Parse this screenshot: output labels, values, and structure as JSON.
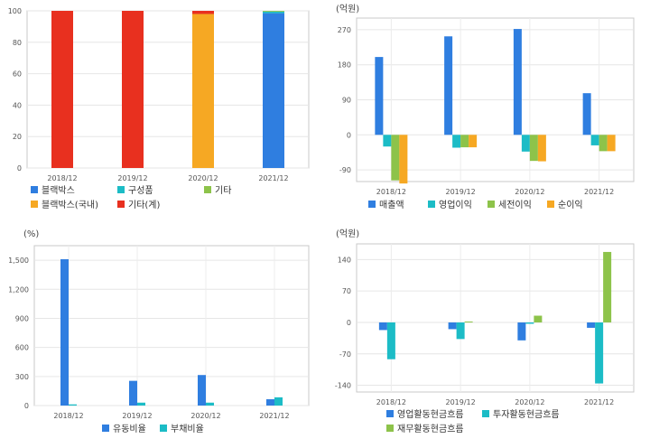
{
  "chart_data": [
    {
      "type": "bar",
      "stacked": true,
      "title": "",
      "unit": "",
      "categories": [
        "2018/12",
        "2019/12",
        "2020/12",
        "2021/12"
      ],
      "ylim": [
        0,
        100
      ],
      "yticks": [
        0,
        20,
        40,
        60,
        80,
        100
      ],
      "grid": true,
      "legend_position": "bottom",
      "series": [
        {
          "name": "블랙박스",
          "color": "#2f7ee0",
          "values": [
            0,
            0,
            0,
            98.5
          ]
        },
        {
          "name": "구성품",
          "color": "#1cbcc6",
          "values": [
            0,
            0,
            0,
            1
          ]
        },
        {
          "name": "기타",
          "color": "#8dc34a",
          "values": [
            0,
            0,
            0,
            0.5
          ]
        },
        {
          "name": "블랙박스(국내)",
          "color": "#f6a823",
          "values": [
            0,
            0,
            98,
            0
          ]
        },
        {
          "name": "기타(계)",
          "color": "#e8301f",
          "values": [
            100,
            100,
            2,
            0
          ]
        }
      ]
    },
    {
      "type": "bar",
      "title": "",
      "unit": "(억원)",
      "categories": [
        "2018/12",
        "2019/12",
        "2020/12",
        "2021/12"
      ],
      "ylim": [
        -120,
        300
      ],
      "yticks": [
        -90,
        0,
        90,
        180,
        270
      ],
      "grid": true,
      "legend_position": "bottom",
      "series": [
        {
          "name": "매출액",
          "color": "#2f7ee0",
          "values": [
            200,
            253,
            272,
            107
          ]
        },
        {
          "name": "영업이익",
          "color": "#1cbcc6",
          "values": [
            -30,
            -33,
            -43,
            -27
          ]
        },
        {
          "name": "세전이익",
          "color": "#8dc34a",
          "values": [
            -117,
            -32,
            -67,
            -42
          ]
        },
        {
          "name": "순이익",
          "color": "#f6a823",
          "values": [
            -125,
            -32,
            -68,
            -42
          ]
        }
      ]
    },
    {
      "type": "bar",
      "title": "",
      "unit": "(%)",
      "categories": [
        "2018/12",
        "2019/12",
        "2020/12",
        "2021/12"
      ],
      "ylim": [
        0,
        1650
      ],
      "yticks": [
        0,
        300,
        600,
        900,
        1200,
        1500
      ],
      "ytick_labels": [
        "0",
        "300",
        "600",
        "900",
        "1,200",
        "1,500"
      ],
      "grid": true,
      "legend_position": "bottom",
      "series": [
        {
          "name": "유동비율",
          "color": "#2f7ee0",
          "values": [
            1510,
            255,
            315,
            65
          ]
        },
        {
          "name": "부채비율",
          "color": "#1cbcc6",
          "values": [
            12,
            30,
            30,
            85
          ]
        }
      ]
    },
    {
      "type": "bar",
      "title": "",
      "unit": "(억원)",
      "categories": [
        "2018/12",
        "2019/12",
        "2020/12",
        "2021/12"
      ],
      "ylim": [
        -155,
        175
      ],
      "yticks": [
        -140,
        -70,
        0,
        70,
        140
      ],
      "grid": true,
      "legend_position": "bottom",
      "series": [
        {
          "name": "영업활동현금흐름",
          "color": "#2f7ee0",
          "values": [
            -17,
            -15,
            -40,
            -12
          ]
        },
        {
          "name": "투자활동현금흐름",
          "color": "#1cbcc6",
          "values": [
            -82,
            -37,
            -3,
            -136
          ]
        },
        {
          "name": "재무활동현금흐름",
          "color": "#8dc34a",
          "values": [
            0,
            2,
            15,
            157
          ]
        }
      ]
    }
  ]
}
